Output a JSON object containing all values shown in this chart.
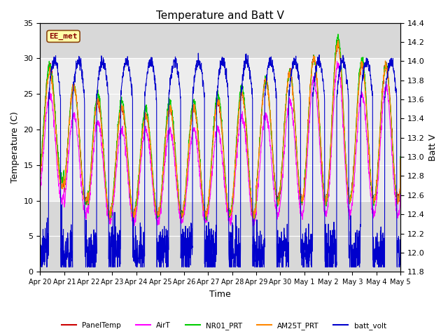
{
  "title": "Temperature and Batt V",
  "ylabel_left": "Temperature (C)",
  "ylabel_right": "Batt V",
  "xlabel": "Time",
  "ylim_left": [
    0,
    35
  ],
  "ylim_right": [
    11.8,
    14.4
  ],
  "xtick_labels": [
    "Apr 20",
    "Apr 21",
    "Apr 22",
    "Apr 23",
    "Apr 24",
    "Apr 25",
    "Apr 26",
    "Apr 27",
    "Apr 28",
    "Apr 29",
    "Apr 30",
    "May 1",
    "May 2",
    "May 3",
    "May 4",
    "May 5"
  ],
  "shaded_region_temp": [
    10,
    30
  ],
  "ee_met_label": "EE_met",
  "legend_entries": [
    "PanelTemp",
    "AirT",
    "NR01_PRT",
    "AM25T_PRT",
    "batt_volt"
  ],
  "line_colors": [
    "#cc0000",
    "#ff00ff",
    "#00cc00",
    "#ff8800",
    "#0000cc"
  ],
  "background_color": "#ffffff",
  "plot_bg_color": "#d8d8d8",
  "title_fontsize": 11,
  "axis_fontsize": 9,
  "tick_fontsize": 8,
  "left_yticks": [
    0,
    5,
    10,
    15,
    20,
    25,
    30,
    35
  ],
  "right_yticks": [
    11.8,
    12.0,
    12.2,
    12.4,
    12.6,
    12.8,
    13.0,
    13.2,
    13.4,
    13.6,
    13.8,
    14.0,
    14.2,
    14.4
  ],
  "n_days": 15,
  "pts_per_day": 144
}
